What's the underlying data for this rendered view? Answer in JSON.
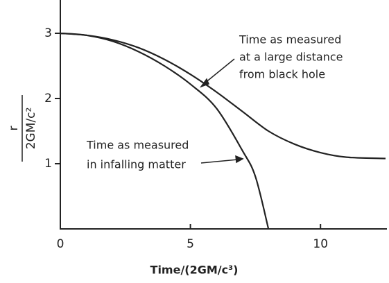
{
  "chart_data": {
    "type": "line",
    "x_label": "Time/(2GM/c³)",
    "y_label_numerator": "r",
    "y_label_denominator": "2GM/c²",
    "xlim": [
      0,
      12.5
    ],
    "ylim": [
      0,
      3.5
    ],
    "xticks": [
      0,
      5,
      10
    ],
    "yticks": [
      1,
      2,
      3
    ],
    "series": [
      {
        "name": "Time as measured at a large distance from black hole",
        "color": "#222222",
        "x": [
          0,
          1,
          2,
          3,
          4,
          5,
          6,
          7,
          8,
          9,
          10,
          11,
          12.5
        ],
        "values": [
          3,
          2.97,
          2.9,
          2.78,
          2.6,
          2.37,
          2.1,
          1.8,
          1.5,
          1.3,
          1.17,
          1.1,
          1.08
        ]
      },
      {
        "name": "Time as measured in infalling matter",
        "color": "#222222",
        "x": [
          0,
          1,
          2,
          3,
          4,
          5,
          6,
          7,
          7.5,
          8
        ],
        "values": [
          3,
          2.97,
          2.88,
          2.72,
          2.5,
          2.22,
          1.85,
          1.2,
          0.8,
          0
        ]
      }
    ],
    "annotations": [
      {
        "lines": [
          "Time as measured",
          "at a large distance",
          "from black hole"
        ]
      },
      {
        "lines": [
          "Time as measured",
          "in infalling matter"
        ]
      }
    ]
  }
}
